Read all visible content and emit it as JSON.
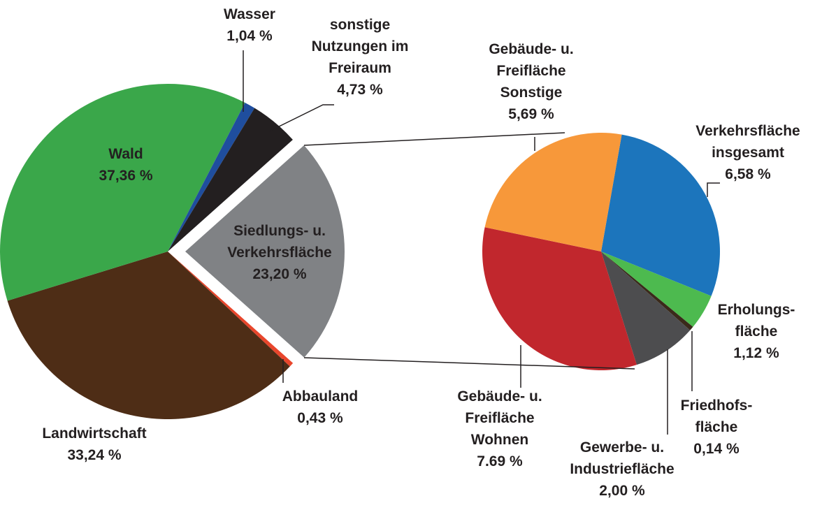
{
  "chart_data": [
    {
      "type": "pie",
      "labels": [
        "Siedlungs- u. Verkehrsfläche",
        "Abbauland",
        "Landwirtschaft",
        "Wald",
        "Wasser",
        "sonstige Nutzungen im Freiraum"
      ],
      "values": [
        23.2,
        0.43,
        33.24,
        37.36,
        1.04,
        4.73
      ],
      "value_labels": [
        "23,20 %",
        "0,43 %",
        "33,24 %",
        "37,36 %",
        "1,04 %",
        "4,73 %"
      ],
      "colors": [
        "#808285",
        "#e8462c",
        "#4e2d16",
        "#3aa74a",
        "#1f4e9e",
        "#231f20"
      ],
      "explode": 0
    },
    {
      "type": "pie",
      "labels": [
        "Verkehrsfläche insgesamt",
        "Erholungs-fläche",
        "Friedhofs-fläche",
        "Gewerbe- u. Industriefläche",
        "Gebäude- u. Freifläche Wohnen",
        "Gebäude- u. Freifläche Sonstige"
      ],
      "values": [
        6.58,
        1.12,
        0.14,
        2.0,
        7.69,
        5.69
      ],
      "value_labels": [
        "6,58 %",
        "1,12 %",
        "0,14 %",
        "2,00 %",
        "7.69 %",
        "5,69 %"
      ],
      "colors": [
        "#1c75bc",
        "#4dba4f",
        "#3a2a1a",
        "#4d4d4f",
        "#c1272d",
        "#f7983a"
      ]
    }
  ]
}
